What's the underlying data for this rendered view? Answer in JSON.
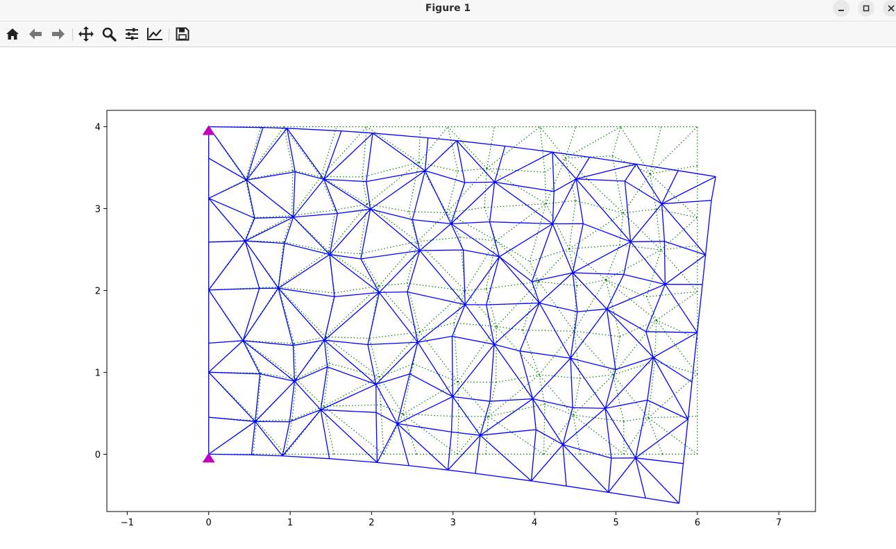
{
  "window": {
    "title": "Figure 1",
    "buttons": [
      "minimize",
      "maximize",
      "close"
    ]
  },
  "toolbar": {
    "tools": [
      {
        "name": "home-icon"
      },
      {
        "name": "back-icon"
      },
      {
        "name": "forward-icon"
      },
      {
        "name": "pan-icon"
      },
      {
        "name": "zoom-icon"
      },
      {
        "name": "configure-subplots-icon"
      },
      {
        "name": "edit-axis-icon"
      },
      {
        "name": "save-icon"
      }
    ]
  },
  "chart_data": {
    "type": "mesh",
    "title": "",
    "xlabel": "",
    "ylabel": "",
    "xlim": [
      -1.25,
      7.45
    ],
    "ylim": [
      -0.7,
      4.2
    ],
    "xticks": [
      "−1",
      "0",
      "1",
      "2",
      "3",
      "4",
      "5",
      "6",
      "7"
    ],
    "yticks": [
      "0",
      "1",
      "2",
      "3",
      "4"
    ],
    "colors": {
      "deformed_mesh": "#0000ff",
      "original_mesh": "#008000",
      "supports": "#bf00bf"
    },
    "series": [
      {
        "style": "dotted green, undeformed grid",
        "x_range": [
          0,
          6
        ],
        "y_range": [
          0,
          4
        ]
      },
      {
        "style": "solid blue, deformed triangulated mesh",
        "boundary": [
          [
            0,
            4.0
          ],
          [
            0.8,
            3.98
          ],
          [
            1.6,
            3.93
          ],
          [
            2.4,
            3.88
          ],
          [
            3.2,
            3.82
          ],
          [
            4.0,
            3.74
          ],
          [
            4.8,
            3.66
          ],
          [
            5.5,
            3.56
          ],
          [
            6.25,
            3.4
          ],
          [
            6.15,
            2.95
          ],
          [
            6.1,
            2.45
          ],
          [
            6.05,
            2.0
          ],
          [
            6.0,
            1.5
          ],
          [
            5.95,
            1.0
          ],
          [
            5.9,
            0.5
          ],
          [
            5.85,
            0.0
          ],
          [
            5.8,
            -0.5
          ],
          [
            5.1,
            -0.42
          ],
          [
            4.3,
            -0.33
          ],
          [
            3.5,
            -0.24
          ],
          [
            2.7,
            -0.17
          ],
          [
            1.9,
            -0.1
          ],
          [
            1.2,
            -0.05
          ],
          [
            0.6,
            -0.02
          ],
          [
            0,
            0
          ],
          [
            -0.05,
            1.0
          ],
          [
            0,
            2.0
          ],
          [
            0,
            3.0
          ],
          [
            0,
            4.0
          ]
        ]
      },
      {
        "style": "magenta triangle markers, supports",
        "points": [
          [
            0,
            3.95
          ],
          [
            0,
            -0.05
          ]
        ]
      }
    ]
  }
}
